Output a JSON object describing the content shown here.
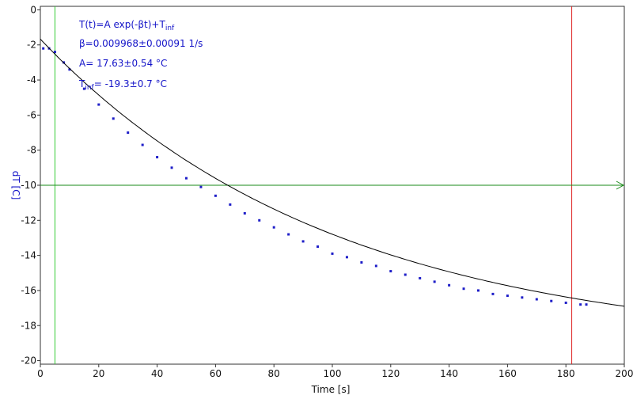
{
  "colors": {
    "data": "#1e1ec8",
    "fit": "#000000",
    "cursor_left": "#33cc33",
    "cursor_right": "#dd2222",
    "h_line": "#1a8a1a",
    "axis": "#333333",
    "text_blue": "#1414c8"
  },
  "annotation": {
    "formula_prefix": "T(t)=A exp(-βt)+T",
    "formula_sub": "inf",
    "beta": "β=0.009968±0.00091 1/s",
    "A": "A= 17.63±0.54 °C",
    "tinf_prefix": "T",
    "tinf_sub": "inf",
    "tinf_rest": "= -19.3±0.7 °C"
  },
  "chart_data": {
    "type": "scatter",
    "xlabel": "Time [s]",
    "ylabel": "dT [C]",
    "xlim": [
      0,
      200
    ],
    "ylim": [
      -20.2,
      0.2
    ],
    "xticks": [
      0,
      20,
      40,
      60,
      80,
      100,
      120,
      140,
      160,
      180,
      200
    ],
    "yticks": [
      0,
      -2,
      -4,
      -6,
      -8,
      -10,
      -12,
      -14,
      -16,
      -18,
      -20
    ],
    "grid": false,
    "fit": {
      "model": "T(t)=A exp(-βt)+T_inf",
      "A": 17.63,
      "beta": 0.009968,
      "T_inf": -19.3,
      "x_range": [
        0,
        200
      ]
    },
    "series": [
      {
        "x": [
          1,
          3,
          5,
          8,
          10,
          15,
          20,
          25,
          30,
          35,
          40,
          45,
          50,
          55,
          60,
          65,
          70,
          75,
          80,
          85,
          90,
          95,
          100,
          105,
          110,
          115,
          120,
          125,
          130,
          135,
          140,
          145,
          150,
          155,
          160,
          165,
          170,
          175,
          180,
          185,
          187
        ],
        "y": [
          -2.2,
          -2.2,
          -2.4,
          -3.0,
          -3.4,
          -4.5,
          -5.4,
          -6.2,
          -7.0,
          -7.7,
          -8.4,
          -9.0,
          -9.6,
          -10.1,
          -10.6,
          -11.1,
          -11.6,
          -12.0,
          -12.4,
          -12.8,
          -13.2,
          -13.5,
          -13.9,
          -14.1,
          -14.4,
          -14.6,
          -14.9,
          -15.1,
          -15.3,
          -15.5,
          -15.7,
          -15.9,
          -16.0,
          -16.2,
          -16.3,
          -16.4,
          -16.5,
          -16.6,
          -16.7,
          -16.8,
          -16.8
        ]
      }
    ],
    "cursors": {
      "vertical": [
        5,
        182
      ],
      "horizontal": [
        -10
      ]
    }
  }
}
